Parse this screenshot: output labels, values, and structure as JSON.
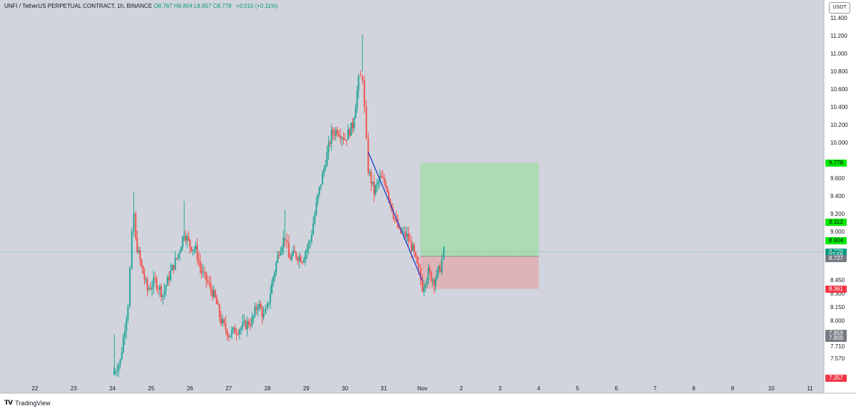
{
  "header": {
    "symbol": "UNFI / TetherUS PERPETUAL CONTRACT, 1h, BINANCE",
    "open": "O8.767",
    "high": "H8.804",
    "low": "L8.657",
    "close": "C8.778",
    "change": "+0.010 (+0.11%)"
  },
  "currency_button": "USDT",
  "footer": {
    "brand": "TradingView",
    "logo_icon": "tradingview-logo-icon"
  },
  "colors": {
    "background": "#d1d4dc",
    "up_candle": "#26a69a",
    "down_candle": "#ef5350",
    "trendline": "#1e40c8",
    "profit_zone": "#a8dcae",
    "loss_zone": "#e0b0b4",
    "current_price_line": "#26a69a"
  },
  "price_axis": [
    "11.400",
    "11.200",
    "11.000",
    "10.800",
    "10.600",
    "10.400",
    "10.200",
    "10.000",
    "9.600",
    "9.400",
    "9.200",
    "9.000",
    "8.450",
    "8.300",
    "8.150",
    "8.000",
    "7.710",
    "7.570"
  ],
  "price_tags": [
    {
      "label": "9.778",
      "price": 9.778,
      "color": "#00e600",
      "text_color": "#131722"
    },
    {
      "label": "9.112",
      "price": 9.112,
      "color": "#00e600",
      "text_color": "#131722"
    },
    {
      "label": "8.904",
      "price": 8.904,
      "color": "#00e600",
      "text_color": "#131722"
    },
    {
      "label": "8.778",
      "price": 8.778,
      "color": "#089981",
      "text_color": "#ffffff"
    },
    {
      "label": "02:56",
      "price": 8.74,
      "color": "#089981",
      "text_color": "#ffffff"
    },
    {
      "label": "8.727",
      "price": 8.7,
      "color": "#787b86",
      "text_color": "#ffffff"
    },
    {
      "label": "8.361",
      "price": 8.361,
      "color": "#f23645",
      "text_color": "#ffffff"
    },
    {
      "label": "7.859",
      "price": 7.859,
      "color": "#787b86",
      "text_color": "#ffffff"
    },
    {
      "label": "7.809",
      "price": 7.809,
      "color": "#787b86",
      "text_color": "#ffffff"
    },
    {
      "label": "7.357",
      "price": 7.357,
      "color": "#f23645",
      "text_color": "#ffffff"
    }
  ],
  "date_axis": [
    "22",
    "23",
    "24",
    "25",
    "26",
    "27",
    "28",
    "29",
    "30",
    "31",
    "Nov",
    "2",
    "3",
    "4",
    "5",
    "6",
    "7",
    "8",
    "9",
    "10",
    "11"
  ],
  "chart_data": {
    "type": "candlestick",
    "timeframe": "1h",
    "current_price": 8.778,
    "y_range": [
      7.35,
      11.45
    ],
    "trendline": {
      "from": {
        "day": 30.6,
        "price": 9.9
      },
      "to": {
        "day": 32.0,
        "price": 8.45
      }
    },
    "position": {
      "entry": 8.727,
      "target": 9.778,
      "stop": 8.361,
      "start_day": 32.0,
      "end_day": 35.0
    },
    "price_path": [
      {
        "day": 24.0,
        "price": 7.4
      },
      {
        "day": 24.2,
        "price": 7.55
      },
      {
        "day": 24.4,
        "price": 8.2
      },
      {
        "day": 24.5,
        "price": 8.95
      },
      {
        "day": 24.55,
        "price": 9.2
      },
      {
        "day": 24.6,
        "price": 8.9
      },
      {
        "day": 24.75,
        "price": 8.6
      },
      {
        "day": 24.9,
        "price": 8.35
      },
      {
        "day": 25.1,
        "price": 8.45
      },
      {
        "day": 25.3,
        "price": 8.3
      },
      {
        "day": 25.5,
        "price": 8.55
      },
      {
        "day": 25.7,
        "price": 8.75
      },
      {
        "day": 25.85,
        "price": 9.0
      },
      {
        "day": 26.0,
        "price": 8.85
      },
      {
        "day": 26.15,
        "price": 8.8
      },
      {
        "day": 26.3,
        "price": 8.55
      },
      {
        "day": 26.5,
        "price": 8.4
      },
      {
        "day": 26.65,
        "price": 8.25
      },
      {
        "day": 26.8,
        "price": 8.0
      },
      {
        "day": 27.0,
        "price": 7.85
      },
      {
        "day": 27.2,
        "price": 7.9
      },
      {
        "day": 27.4,
        "price": 7.95
      },
      {
        "day": 27.6,
        "price": 8.0
      },
      {
        "day": 27.75,
        "price": 8.2
      },
      {
        "day": 27.9,
        "price": 8.05
      },
      {
        "day": 28.0,
        "price": 8.15
      },
      {
        "day": 28.15,
        "price": 8.5
      },
      {
        "day": 28.3,
        "price": 8.8
      },
      {
        "day": 28.45,
        "price": 8.95
      },
      {
        "day": 28.55,
        "price": 8.7
      },
      {
        "day": 28.7,
        "price": 8.75
      },
      {
        "day": 28.9,
        "price": 8.7
      },
      {
        "day": 29.1,
        "price": 8.9
      },
      {
        "day": 29.3,
        "price": 9.4
      },
      {
        "day": 29.5,
        "price": 9.8
      },
      {
        "day": 29.65,
        "price": 10.1
      },
      {
        "day": 29.8,
        "price": 10.15
      },
      {
        "day": 30.0,
        "price": 10.05
      },
      {
        "day": 30.2,
        "price": 10.2
      },
      {
        "day": 30.35,
        "price": 10.7
      },
      {
        "day": 30.45,
        "price": 10.75
      },
      {
        "day": 30.55,
        "price": 10.0
      },
      {
        "day": 30.6,
        "price": 9.7
      },
      {
        "day": 30.75,
        "price": 9.45
      },
      {
        "day": 30.9,
        "price": 9.6
      },
      {
        "day": 31.05,
        "price": 9.55
      },
      {
        "day": 31.25,
        "price": 9.2
      },
      {
        "day": 31.4,
        "price": 9.0
      },
      {
        "day": 31.6,
        "price": 8.95
      },
      {
        "day": 31.75,
        "price": 8.8
      },
      {
        "day": 31.9,
        "price": 8.55
      },
      {
        "day": 32.0,
        "price": 8.38
      },
      {
        "day": 32.15,
        "price": 8.55
      },
      {
        "day": 32.3,
        "price": 8.45
      },
      {
        "day": 32.45,
        "price": 8.6
      },
      {
        "day": 32.55,
        "price": 8.78
      }
    ]
  }
}
